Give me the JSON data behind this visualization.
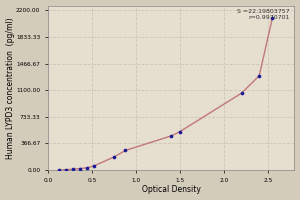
{
  "xlabel": "Optical Density",
  "ylabel": "Human LYPD3 concentration  (pg/ml)",
  "equation_text": "S =22.19803757\nr=0.9970701",
  "background_color": "#d4ccbb",
  "plot_bg_color": "#e6dece",
  "grid_color": "#c8c0b0",
  "dot_color": "#1a1a99",
  "line_color": "#c07878",
  "x_data": [
    0.13,
    0.2,
    0.28,
    0.36,
    0.44,
    0.52,
    0.75,
    0.88,
    1.4,
    1.5,
    2.2,
    2.4,
    2.55
  ],
  "y_data": [
    0,
    5,
    10,
    20,
    30,
    55,
    180,
    270,
    470,
    530,
    1060,
    1300,
    2100
  ],
  "xlim": [
    0.0,
    2.8
  ],
  "ylim": [
    0.0,
    2266.68
  ],
  "xticks": [
    0.0,
    0.5,
    1.0,
    1.5,
    2.0,
    2.5
  ],
  "yticks": [
    0.0,
    366.67,
    733.33,
    1100.0,
    1466.67,
    1833.33,
    2200.0
  ],
  "ytick_labels": [
    "0.00",
    "366.67",
    "733.33",
    "1100.00",
    "1466.67",
    "1833.33",
    "2200.00"
  ],
  "title_fontsize": 5.5,
  "label_fontsize": 5.5,
  "tick_fontsize": 4.2,
  "annot_fontsize": 4.5
}
